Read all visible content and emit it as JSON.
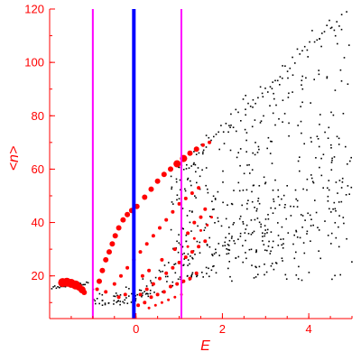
{
  "chart_data": {
    "type": "scatter",
    "xlabel": "E",
    "ylabel": "<n>",
    "xlim": [
      -2.0,
      5.0
    ],
    "ylim": [
      4,
      120
    ],
    "xticks": [
      0,
      2,
      4
    ],
    "yticks": [
      20,
      40,
      60,
      80,
      100,
      120
    ],
    "vertical_lines": [
      {
        "x": -0.05,
        "color": "#0000ff",
        "style": "thick"
      },
      {
        "x": -1.0,
        "color": "#ff00ff",
        "style": "thin"
      },
      {
        "x": 1.05,
        "color": "#ff00ff",
        "style": "thin"
      }
    ],
    "colors": {
      "axis": "#ff0000",
      "black_points": "#000000",
      "red_points": "#ff0000"
    },
    "red_series": [
      [
        -1.7,
        17.5,
        5
      ],
      [
        -1.6,
        17.6,
        5
      ],
      [
        -1.5,
        17.2,
        5
      ],
      [
        -1.4,
        16.6,
        5
      ],
      [
        -1.32,
        15.8,
        4
      ],
      [
        -1.25,
        14.8,
        4
      ],
      [
        -1.2,
        13.8,
        3
      ],
      [
        -0.9,
        15,
        2
      ],
      [
        -0.85,
        18,
        3
      ],
      [
        -0.78,
        22,
        3
      ],
      [
        -0.7,
        26,
        3
      ],
      [
        -0.62,
        29,
        3
      ],
      [
        -0.55,
        32,
        3
      ],
      [
        -0.48,
        35,
        3
      ],
      [
        -0.4,
        38,
        3
      ],
      [
        -0.3,
        41,
        3
      ],
      [
        -0.2,
        43,
        3
      ],
      [
        -0.1,
        44.5,
        3
      ],
      [
        0.02,
        46,
        3
      ],
      [
        0.2,
        49.5,
        3
      ],
      [
        0.35,
        52.5,
        3
      ],
      [
        0.5,
        55.5,
        3
      ],
      [
        0.65,
        58,
        3
      ],
      [
        0.8,
        60,
        3
      ],
      [
        0.95,
        62,
        4
      ],
      [
        1.1,
        64,
        4
      ],
      [
        1.25,
        66,
        3
      ],
      [
        1.4,
        67.5,
        3
      ],
      [
        1.55,
        69,
        2
      ],
      [
        1.7,
        70,
        2
      ],
      [
        -0.7,
        14,
        2
      ],
      [
        -0.5,
        17,
        2
      ],
      [
        -0.35,
        20,
        2
      ],
      [
        -0.2,
        23,
        2
      ],
      [
        -0.05,
        26,
        2
      ],
      [
        0.1,
        29,
        2
      ],
      [
        0.25,
        32,
        2
      ],
      [
        0.4,
        35,
        2
      ],
      [
        0.55,
        38,
        2
      ],
      [
        0.7,
        41,
        2
      ],
      [
        0.85,
        44,
        2
      ],
      [
        1.0,
        47,
        2
      ],
      [
        1.15,
        49,
        2
      ],
      [
        1.3,
        51,
        2
      ],
      [
        1.45,
        53,
        2
      ],
      [
        -0.05,
        11,
        2
      ],
      [
        0.1,
        13,
        2
      ],
      [
        0.25,
        15,
        2
      ],
      [
        0.4,
        17,
        2
      ],
      [
        0.55,
        19,
        2
      ],
      [
        0.7,
        21,
        2
      ],
      [
        0.85,
        23,
        2
      ],
      [
        1.0,
        25,
        2
      ],
      [
        1.15,
        27,
        2
      ],
      [
        1.3,
        29,
        2
      ],
      [
        1.45,
        31,
        2
      ],
      [
        1.6,
        33,
        2
      ],
      [
        0.05,
        9,
        2
      ],
      [
        0.2,
        10,
        2
      ],
      [
        0.35,
        12,
        2
      ],
      [
        0.5,
        13,
        2
      ],
      [
        0.65,
        14,
        2
      ],
      [
        0.8,
        16,
        2
      ],
      [
        0.95,
        17,
        2
      ],
      [
        1.1,
        18,
        2
      ],
      [
        1.25,
        19,
        2
      ],
      [
        1.4,
        21,
        2
      ],
      [
        0.3,
        8,
        1.5
      ],
      [
        0.45,
        9,
        1.5
      ],
      [
        0.6,
        10,
        1.5
      ],
      [
        0.75,
        11,
        1.5
      ],
      [
        0.9,
        12,
        1.5
      ],
      [
        1.05,
        13,
        1.5
      ],
      [
        -0.4,
        12,
        2
      ],
      [
        -0.25,
        13,
        2
      ],
      [
        0.15,
        20,
        2
      ],
      [
        0.3,
        22,
        2
      ],
      [
        0.6,
        26,
        2
      ],
      [
        0.9,
        30,
        2
      ],
      [
        1.2,
        36,
        2
      ],
      [
        1.35,
        40,
        2
      ],
      [
        1.5,
        42,
        2
      ],
      [
        1.6,
        45,
        2
      ],
      [
        1.2,
        31,
        1.5
      ],
      [
        1.35,
        34,
        1.5
      ],
      [
        1.5,
        37,
        1.5
      ],
      [
        1.65,
        39,
        1.5
      ],
      [
        1.75,
        42,
        1.5
      ]
    ]
  }
}
